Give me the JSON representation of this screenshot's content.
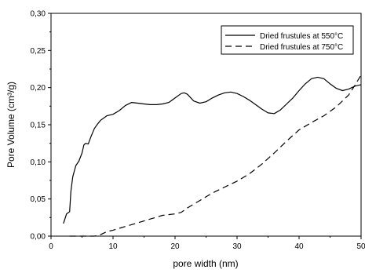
{
  "chart_data": {
    "type": "line",
    "xlabel": "pore width (nm)",
    "ylabel": "Pore Volume (cm³/g)",
    "xlim": [
      0,
      50
    ],
    "ylim": [
      0,
      0.3
    ],
    "x_ticks": [
      "0",
      "10",
      "20",
      "30",
      "40",
      "50"
    ],
    "y_ticks": [
      "0,00",
      "0,05",
      "0,10",
      "0,15",
      "0,20",
      "0,25",
      "0,30"
    ],
    "x_tick_values": [
      0,
      10,
      20,
      30,
      40,
      50
    ],
    "y_tick_values": [
      0,
      0.05,
      0.1,
      0.15,
      0.2,
      0.25,
      0.3
    ],
    "grid": false,
    "legend_position": "top-right",
    "series": [
      {
        "name": "Dried frustules at 550°C",
        "style": "solid",
        "color": "#000000",
        "x": [
          2.0,
          2.5,
          3.0,
          3.2,
          3.5,
          4.0,
          4.5,
          5.0,
          5.3,
          5.6,
          6.0,
          6.5,
          7.0,
          7.5,
          8.0,
          9.0,
          10.0,
          11.0,
          12.0,
          13.0,
          14.0,
          15.0,
          16.0,
          17.0,
          18.0,
          19.0,
          20.0,
          21.0,
          21.5,
          22.0,
          23.0,
          24.0,
          25.0,
          26.0,
          27.0,
          28.0,
          29.0,
          30.0,
          31.0,
          32.0,
          33.0,
          34.0,
          35.0,
          36.0,
          37.0,
          38.0,
          39.0,
          40.0,
          41.0,
          42.0,
          43.0,
          44.0,
          45.0,
          46.0,
          47.0,
          48.0,
          49.0,
          50.0
        ],
        "y": [
          0.017,
          0.03,
          0.033,
          0.06,
          0.08,
          0.095,
          0.101,
          0.112,
          0.123,
          0.125,
          0.124,
          0.135,
          0.145,
          0.151,
          0.156,
          0.162,
          0.164,
          0.169,
          0.176,
          0.18,
          0.179,
          0.178,
          0.177,
          0.177,
          0.178,
          0.18,
          0.186,
          0.192,
          0.193,
          0.191,
          0.182,
          0.179,
          0.181,
          0.186,
          0.19,
          0.193,
          0.194,
          0.192,
          0.188,
          0.183,
          0.177,
          0.171,
          0.166,
          0.165,
          0.17,
          0.178,
          0.186,
          0.196,
          0.205,
          0.212,
          0.214,
          0.212,
          0.205,
          0.199,
          0.196,
          0.198,
          0.202,
          0.204
        ]
      },
      {
        "name": "Dried frustules at 750°C",
        "style": "dashed",
        "color": "#000000",
        "x": [
          3.0,
          4.0,
          5.0,
          6.0,
          7.0,
          8.0,
          9.0,
          10.0,
          12.0,
          14.0,
          16.0,
          18.0,
          20.0,
          21.0,
          22.0,
          24.0,
          26.0,
          28.0,
          30.0,
          32.0,
          34.0,
          36.0,
          38.0,
          40.0,
          42.0,
          44.0,
          46.0,
          48.0,
          49.0,
          50.0
        ],
        "y": [
          0.0,
          0.0,
          0.0,
          0.0,
          0.0,
          0.002,
          0.006,
          0.008,
          0.013,
          0.018,
          0.023,
          0.028,
          0.03,
          0.032,
          0.038,
          0.048,
          0.058,
          0.066,
          0.074,
          0.084,
          0.097,
          0.112,
          0.128,
          0.143,
          0.153,
          0.162,
          0.174,
          0.19,
          0.203,
          0.217
        ]
      }
    ]
  }
}
